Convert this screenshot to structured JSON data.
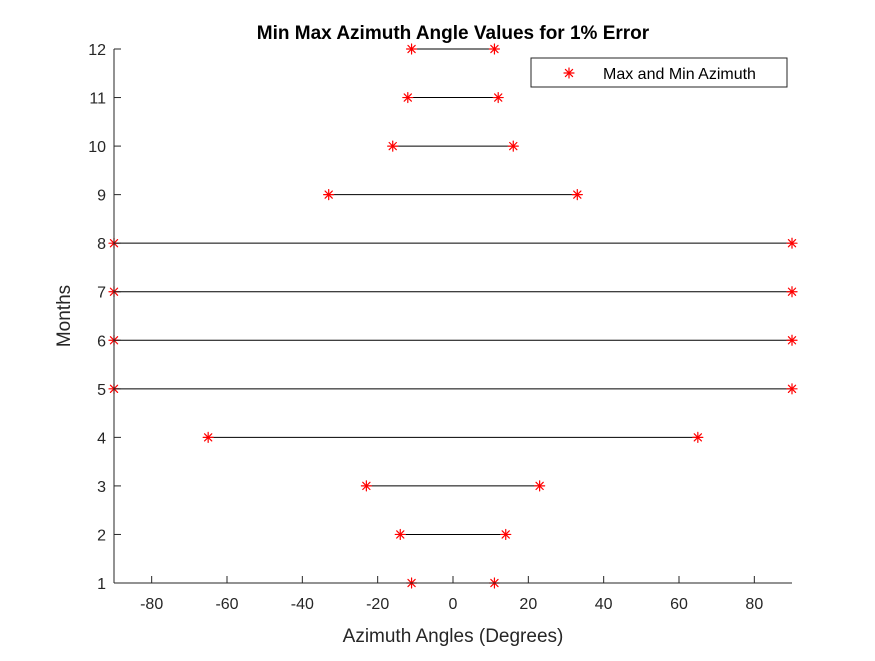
{
  "chart_data": {
    "type": "scatter",
    "title": "Min Max Azimuth Angle Values for 1% Error",
    "xlabel": "Azimuth Angles (Degrees)",
    "ylabel": "Months",
    "xlim": [
      -90,
      90
    ],
    "ylim": [
      1,
      12
    ],
    "x_ticks": [
      -80,
      -60,
      -40,
      -20,
      0,
      20,
      40,
      60,
      80
    ],
    "y_ticks": [
      1,
      2,
      3,
      4,
      5,
      6,
      7,
      8,
      9,
      10,
      11,
      12
    ],
    "grid": false,
    "legend": {
      "entries": [
        "Max and Min Azimuth"
      ],
      "placement": "top-right"
    },
    "marker_color": "#ff0000",
    "line_color": "#000000",
    "series": [
      {
        "name": "Max and Min Azimuth",
        "points": [
          {
            "month": 1,
            "min": -11,
            "max": 11
          },
          {
            "month": 2,
            "min": -14,
            "max": 14
          },
          {
            "month": 3,
            "min": -23,
            "max": 23
          },
          {
            "month": 4,
            "min": -65,
            "max": 65
          },
          {
            "month": 5,
            "min": -90,
            "max": 90
          },
          {
            "month": 6,
            "min": -90,
            "max": 90
          },
          {
            "month": 7,
            "min": -90,
            "max": 90
          },
          {
            "month": 8,
            "min": -90,
            "max": 90
          },
          {
            "month": 9,
            "min": -33,
            "max": 33
          },
          {
            "month": 10,
            "min": -16,
            "max": 16
          },
          {
            "month": 11,
            "min": -12,
            "max": 12
          },
          {
            "month": 12,
            "min": -11,
            "max": 11
          }
        ]
      }
    ]
  }
}
